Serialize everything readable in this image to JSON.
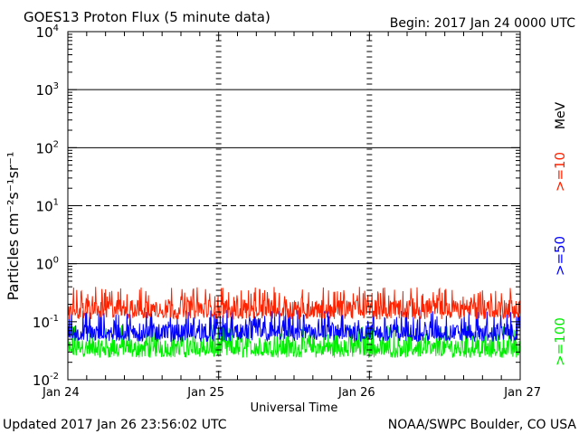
{
  "header": {
    "title": "GOES13 Proton Flux (5 minute data)",
    "begin": "Begin: 2017 Jan 24 0000 UTC"
  },
  "footer": {
    "updated": "Updated 2017 Jan 26 23:56:02 UTC",
    "credit": "NOAA/SWPC Boulder, CO USA"
  },
  "chart_data": {
    "type": "line",
    "title": "GOES13 Proton Flux (5 minute data)",
    "xlabel": "Universal Time",
    "ylabel": "Particles cm⁻²s⁻¹sr⁻¹",
    "yscale": "log",
    "ylim": [
      0.01,
      10000
    ],
    "y_ticks": [
      {
        "value": 0.01,
        "base": "10",
        "exp": "-2"
      },
      {
        "value": 0.1,
        "base": "10",
        "exp": "-1"
      },
      {
        "value": 1,
        "base": "10",
        "exp": "0"
      },
      {
        "value": 10,
        "base": "10",
        "exp": "1"
      },
      {
        "value": 100,
        "base": "10",
        "exp": "2"
      },
      {
        "value": 1000,
        "base": "10",
        "exp": "3"
      },
      {
        "value": 10000,
        "base": "10",
        "exp": "4"
      }
    ],
    "x_ticks": [
      {
        "label": "Jan 24",
        "day": 0
      },
      {
        "label": "Jan 25",
        "day": 1
      },
      {
        "label": "Jan 26",
        "day": 2
      },
      {
        "label": "Jan 27",
        "day": 3
      }
    ],
    "xlim": [
      "2017-01-24 00:00",
      "2017-01-27 00:00"
    ],
    "threshold_lines": [
      {
        "value": 1,
        "style": "solid"
      },
      {
        "value": 10,
        "style": "dashed"
      },
      {
        "value": 100,
        "style": "solid"
      },
      {
        "value": 1000,
        "style": "solid"
      }
    ],
    "units_label": "MeV",
    "series": [
      {
        "name": ">=10",
        "color": "#ff2200",
        "base": 0.17,
        "low": 0.11,
        "high": 0.4
      },
      {
        "name": ">=50",
        "color": "#0000ff",
        "base": 0.065,
        "low": 0.045,
        "high": 0.16
      },
      {
        "name": ">=100",
        "color": "#00ee00",
        "base": 0.035,
        "low": 0.024,
        "high": 0.09
      }
    ],
    "grid": false
  }
}
